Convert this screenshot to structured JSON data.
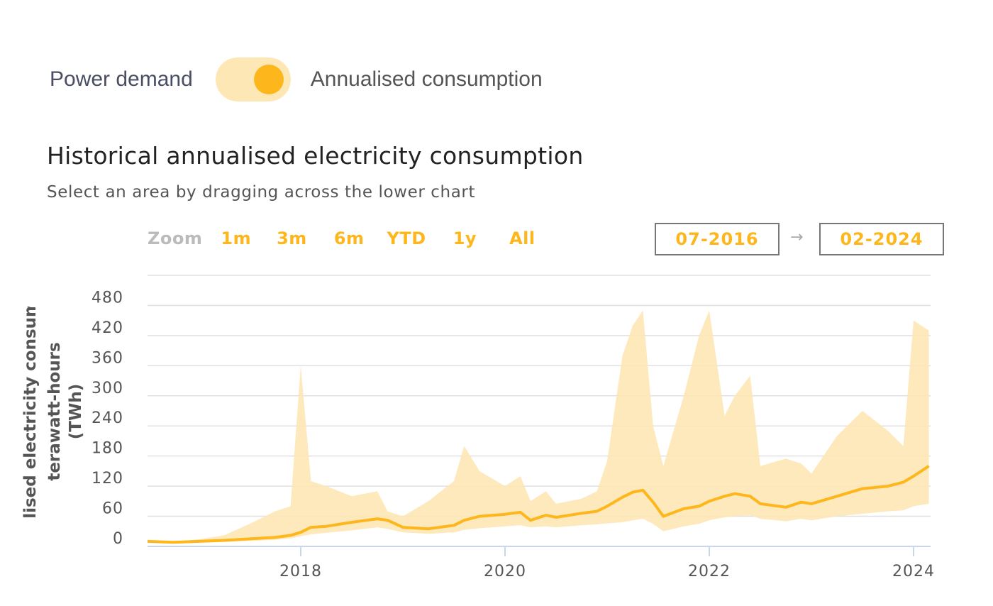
{
  "toggle": {
    "left_label": "Power demand",
    "right_label": "Annualised consumption",
    "state": "annualised"
  },
  "header": {
    "title": "Historical annualised electricity consumption",
    "subtitle": "Select an area by dragging across the lower chart"
  },
  "zoom": {
    "label": "Zoom",
    "buttons": [
      "1m",
      "3m",
      "6m",
      "YTD",
      "1y",
      "All"
    ]
  },
  "range": {
    "from": "07-2016",
    "arrow": "→",
    "to": "02-2024"
  },
  "colors": {
    "accent": "#fdb71c",
    "band": "#fde7b5",
    "grid": "#e0e0e0",
    "axis_text": "#555555"
  },
  "chart_data": {
    "type": "area",
    "ylabel": "Annualised electricity consumption, terawatt-hours (TWh)",
    "ylim": [
      0,
      540
    ],
    "xlim": [
      "2016-07",
      "2024-03"
    ],
    "y_ticks": [
      0,
      60,
      120,
      180,
      240,
      300,
      360,
      420,
      480
    ],
    "x_ticks": [
      "2018",
      "2020",
      "2022",
      "2024"
    ],
    "grid": true,
    "legend": "none",
    "x": [
      2016.5,
      2016.75,
      2017.0,
      2017.25,
      2017.5,
      2017.75,
      2017.9,
      2018.0,
      2018.1,
      2018.25,
      2018.5,
      2018.75,
      2018.85,
      2019.0,
      2019.25,
      2019.5,
      2019.6,
      2019.75,
      2020.0,
      2020.15,
      2020.25,
      2020.4,
      2020.5,
      2020.75,
      2020.9,
      2021.0,
      2021.15,
      2021.25,
      2021.35,
      2021.45,
      2021.55,
      2021.75,
      2021.9,
      2022.0,
      2022.15,
      2022.25,
      2022.4,
      2022.5,
      2022.75,
      2022.9,
      2023.0,
      2023.25,
      2023.5,
      2023.75,
      2023.9,
      2024.0,
      2024.15
    ],
    "series": [
      {
        "values": [
          10,
          8,
          10,
          12,
          15,
          18,
          22,
          28,
          38,
          40,
          48,
          55,
          52,
          38,
          35,
          42,
          52,
          60,
          64,
          68,
          52,
          62,
          58,
          66,
          70,
          80,
          98,
          108,
          112,
          88,
          60,
          75,
          80,
          90,
          100,
          105,
          100,
          85,
          78,
          88,
          85,
          100,
          115,
          120,
          128,
          140,
          160
        ]
      },
      {
        "values": [
          10,
          9,
          14,
          22,
          45,
          70,
          80,
          360,
          130,
          120,
          100,
          110,
          70,
          60,
          90,
          130,
          200,
          150,
          120,
          140,
          90,
          110,
          85,
          95,
          110,
          170,
          380,
          440,
          470,
          240,
          160,
          300,
          420,
          470,
          260,
          300,
          340,
          160,
          175,
          165,
          145,
          220,
          270,
          230,
          200,
          450,
          430
        ]
      },
      {
        "values": [
          10,
          6,
          7,
          9,
          11,
          13,
          16,
          20,
          24,
          27,
          32,
          38,
          35,
          28,
          25,
          28,
          33,
          36,
          40,
          42,
          38,
          40,
          38,
          42,
          44,
          46,
          48,
          52,
          55,
          45,
          30,
          40,
          45,
          52,
          58,
          60,
          62,
          55,
          50,
          55,
          52,
          60,
          65,
          70,
          72,
          80,
          85
        ]
      }
    ]
  }
}
